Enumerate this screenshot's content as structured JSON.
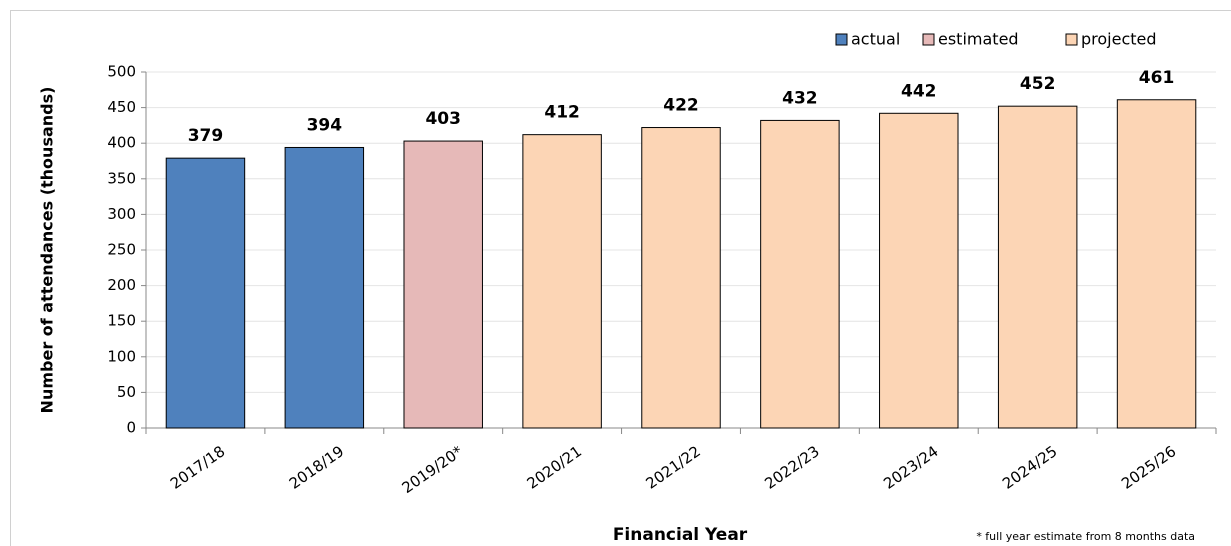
{
  "chart_data": {
    "type": "bar",
    "categories": [
      "2017/18",
      "2018/19",
      "2019/20*",
      "2020/21",
      "2021/22",
      "2022/23",
      "2023/24",
      "2024/25",
      "2025/26"
    ],
    "series": [
      {
        "name": "actual",
        "color": "#4f81bd",
        "values": [
          379,
          394,
          null,
          null,
          null,
          null,
          null,
          null,
          null
        ]
      },
      {
        "name": "estimated",
        "color": "#e6b9b8",
        "values": [
          null,
          null,
          403,
          null,
          null,
          null,
          null,
          null,
          null
        ]
      },
      {
        "name": "projected",
        "color": "#fcd5b5",
        "values": [
          null,
          null,
          null,
          412,
          422,
          432,
          442,
          452,
          461
        ]
      }
    ],
    "y_label": "Number of attendances (thousands)",
    "x_label": "Financial Year",
    "annotation": "* full year estimate from 8 months data",
    "ylim": [
      0,
      500
    ],
    "yticks": [
      0,
      50,
      100,
      150,
      200,
      250,
      300,
      350,
      400,
      450,
      500
    ],
    "grid": true,
    "legend": "top-right"
  }
}
